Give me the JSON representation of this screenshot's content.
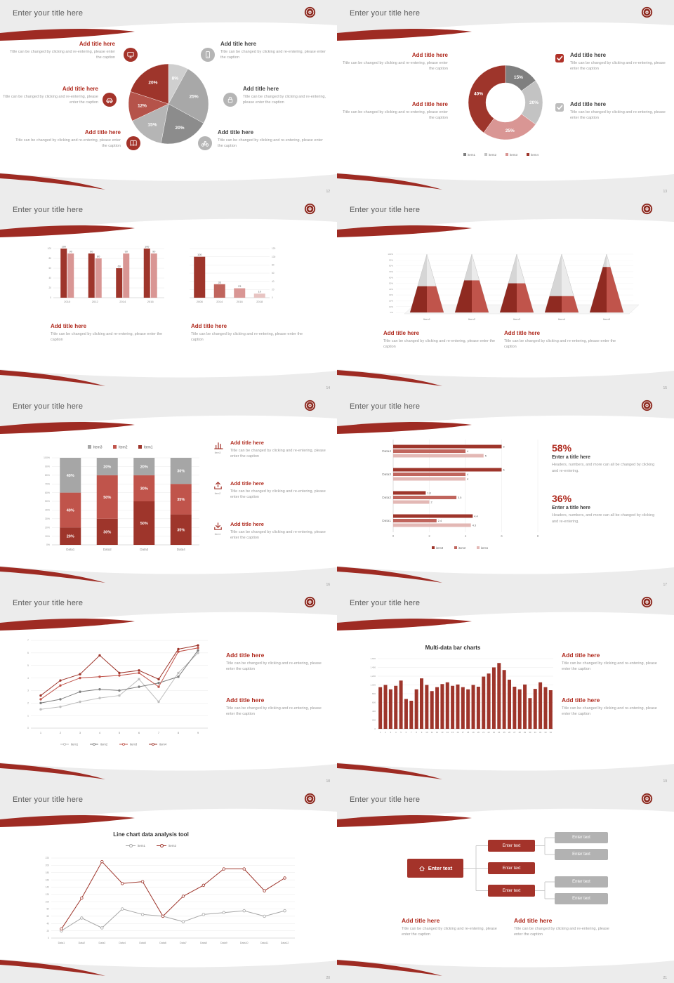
{
  "common": {
    "slide_title": "Enter your title here",
    "add_title": "Add title here",
    "caption": "Title can be changed by clicking and re-entering, please enter the caption",
    "accent_color": "#9e2b23"
  },
  "slides": [
    {
      "page": "12",
      "chart_data": {
        "type": "pie",
        "values": [
          8,
          25,
          20,
          15,
          12,
          20
        ],
        "labels": [
          "8%",
          "25%",
          "20%",
          "15%",
          "12%",
          "20%"
        ],
        "colors": [
          "#cfcfcf",
          "#a8a8a8",
          "#8c8c8c",
          "#b5b5b5",
          "#b5534a",
          "#9e352b"
        ]
      }
    },
    {
      "page": "13",
      "chart_data": {
        "type": "donut",
        "values": [
          15,
          20,
          25,
          40
        ],
        "labels": [
          "15%",
          "20%",
          "25%",
          "40%"
        ],
        "colors": [
          "#7f7f7f",
          "#c3c3c3",
          "#d99694",
          "#9e352b"
        ],
        "legend": [
          "item1",
          "item2",
          "item3",
          "item4"
        ]
      }
    },
    {
      "page": "14",
      "chart_data": [
        {
          "type": "bar",
          "categories": [
            "2010",
            "2012",
            "2014",
            "2016"
          ],
          "series": [
            {
              "color": "#9e352b",
              "values": [
                100,
                90,
                60,
                100
              ]
            },
            {
              "color": "#d99694",
              "values": [
                90,
                80,
                90,
                90
              ]
            }
          ],
          "ymax": 100,
          "ystep": 20,
          "value_labels": true,
          "axis_side": "left"
        },
        {
          "type": "bar",
          "categories": [
            "2008",
            "2014",
            "2016",
            "2018"
          ],
          "series": [
            {
              "bar_colors": [
                "#9e352b",
                "#c0655d",
                "#d99694",
                "#e8c4c2"
              ],
              "values": [
                100,
                33,
                23,
                10
              ]
            }
          ],
          "ymax": 120,
          "ystep": 20,
          "value_labels": true,
          "axis_side": "right"
        }
      ]
    },
    {
      "page": "15",
      "chart_data": {
        "type": "pyramid",
        "categories": [
          "Item1",
          "Item2",
          "Item3",
          "Item4",
          "Item5"
        ],
        "values": [
          45,
          55,
          50,
          28,
          78
        ],
        "ymax": 100,
        "ystep": 10
      }
    },
    {
      "page": "16",
      "chart_data": {
        "type": "stacked",
        "categories": [
          "Data1",
          "Data2",
          "Data3",
          "Data4"
        ],
        "series": [
          {
            "name": "Item1",
            "color": "#9e352b",
            "values": [
              20,
              30,
              50,
              35
            ]
          },
          {
            "name": "Item2",
            "color": "#c0544b",
            "values": [
              40,
              50,
              30,
              35
            ]
          },
          {
            "name": "Item3",
            "color": "#a6a6a6",
            "values": [
              40,
              20,
              20,
              30
            ]
          }
        ],
        "legend": [
          "Item3",
          "Item2",
          "Item1"
        ],
        "legend_colors": [
          "#a6a6a6",
          "#c0544b",
          "#9e352b"
        ],
        "ymax": 100,
        "ystep": 10
      },
      "rows": [
        {
          "icon": "bar-chart-icon",
          "icon_label": "Item3"
        },
        {
          "icon": "upload-icon",
          "icon_label": "Item2"
        },
        {
          "icon": "download-icon",
          "icon_label": "Item1"
        }
      ]
    },
    {
      "page": "17",
      "chart_data": {
        "type": "hbar",
        "categories": [
          "Data4",
          "Data3",
          "Data2",
          "Data1"
        ],
        "series": [
          {
            "name": "item3",
            "color": "#9e352b",
            "values": [
              6,
              6,
              1.8,
              4.4
            ]
          },
          {
            "name": "item2",
            "color": "#c0655d",
            "values": [
              4,
              4,
              3.5,
              2.4
            ]
          },
          {
            "name": "item1",
            "color": "#e3b8b5",
            "values": [
              5,
              4,
              2,
              4.3
            ]
          }
        ],
        "xmax": 8,
        "xstep": 2
      },
      "stats": [
        {
          "value": "58%",
          "title": "Enter a title here",
          "text": "Headers, numbers, and more can all be changed by clicking and re-entering."
        },
        {
          "value": "36%",
          "title": "Enter a title here",
          "text": "Headers, numbers, and more can all be changed by clicking and re-entering."
        }
      ]
    },
    {
      "page": "18",
      "chart_data": {
        "type": "line",
        "x": [
          "1",
          "2",
          "3",
          "4",
          "5",
          "6",
          "7",
          "8",
          "9"
        ],
        "ymax": 7,
        "ystep": 1,
        "legend_pos": "bottom",
        "series": [
          {
            "name": "item1",
            "color": "#bfbfbf",
            "values": [
              1.5,
              1.7,
              2.1,
              2.4,
              2.6,
              3.9,
              2.1,
              4.4,
              6.0
            ]
          },
          {
            "name": "item2",
            "color": "#7f7f7f",
            "values": [
              2.0,
              2.3,
              2.9,
              3.1,
              3.0,
              3.3,
              3.6,
              4.1,
              6.2
            ]
          },
          {
            "name": "item3",
            "color": "#c0544b",
            "values": [
              2.3,
              3.4,
              4.0,
              4.1,
              4.2,
              4.4,
              3.3,
              6.1,
              6.4
            ]
          },
          {
            "name": "item4",
            "color": "#9e352b",
            "values": [
              2.6,
              3.8,
              4.3,
              5.8,
              4.4,
              4.6,
              3.9,
              6.3,
              6.6
            ]
          }
        ]
      }
    },
    {
      "page": "19",
      "chart_title": "Multi-data bar charts",
      "chart_data": {
        "type": "bar",
        "categories": [
          "1",
          "2",
          "3",
          "4",
          "5",
          "6",
          "7",
          "8",
          "9",
          "10",
          "11",
          "12",
          "13",
          "14",
          "15",
          "16",
          "17",
          "18",
          "19",
          "20",
          "21",
          "22",
          "23",
          "24",
          "25",
          "26",
          "27",
          "28",
          "29",
          "30",
          "31",
          "32",
          "33",
          "34"
        ],
        "series": [
          {
            "color": "#9e352b",
            "values": [
              950,
              1000,
              900,
              980,
              1100,
              680,
              640,
              900,
              1150,
              1000,
              860,
              950,
              1020,
              1060,
              980,
              1010,
              950,
              900,
              1000,
              960,
              1190,
              1260,
              1400,
              1500,
              1340,
              1120,
              960,
              900,
              1010,
              700,
              910,
              1060,
              950,
              880
            ]
          }
        ],
        "ymax": 1600,
        "ystep": 200,
        "value_labels": false,
        "axis_side": "left"
      }
    },
    {
      "page": "20",
      "chart_title": "Line chart data analysis tool",
      "chart_data": {
        "type": "line",
        "x": [
          "Data1",
          "Data2",
          "Data3",
          "Data4",
          "Data5",
          "Data6",
          "Data7",
          "Data8",
          "Data9",
          "Data10",
          "Data11",
          "Data12"
        ],
        "ymax": 220,
        "ystep": 20,
        "legend_pos": "top",
        "series": [
          {
            "name": "item1",
            "color": "#a6a6a6",
            "values": [
              20,
              55,
              28,
              80,
              65,
              60,
              45,
              65,
              70,
              75,
              60,
              75
            ]
          },
          {
            "name": "item2",
            "color": "#9e352b",
            "values": [
              25,
              110,
              210,
              150,
              155,
              60,
              115,
              145,
              190,
              190,
              130,
              165
            ]
          }
        ]
      }
    },
    {
      "page": "21",
      "flow": {
        "root_label": "Enter text",
        "mid_labels": [
          "Enter text",
          "Enter text",
          "Enter text"
        ],
        "leaf_labels": [
          "Enter text",
          "Enter text",
          "Enter text",
          "Enter text"
        ]
      }
    }
  ]
}
